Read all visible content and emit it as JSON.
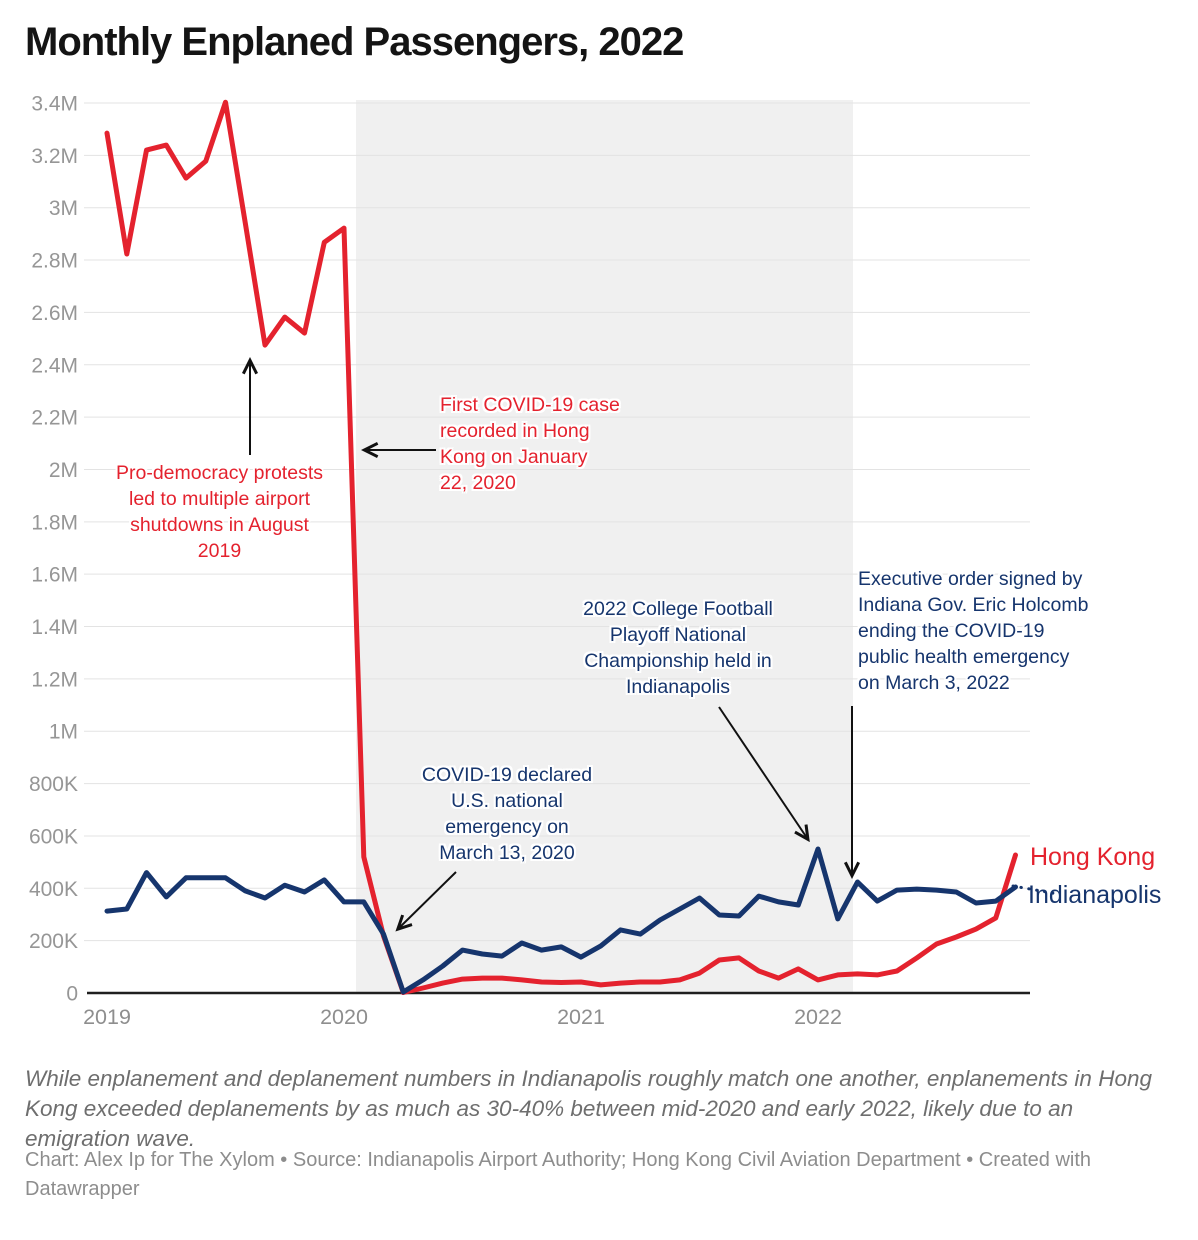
{
  "title": "Monthly Enplaned Passengers, 2022",
  "chart_data": {
    "type": "line",
    "title": "Monthly Enplaned Passengers, 2022",
    "x_unit": "month",
    "frequency": "monthly",
    "x_start": "2019-01",
    "x_end": "2022-11",
    "x_tick_labels": [
      "2019",
      "2020",
      "2021",
      "2022"
    ],
    "y_tick_labels_bottom_to_top": [
      "0",
      "200K",
      "400K",
      "600K",
      "800K",
      "1M",
      "1.2M",
      "1.4M",
      "1.6M",
      "1.8M",
      "2M",
      "2.2M",
      "2.4M",
      "2.6M",
      "2.8M",
      "3M",
      "3.2M",
      "3.4M"
    ],
    "ylim": [
      0,
      3400000
    ],
    "y_unit": "passengers",
    "values_unit": "thousands of passengers",
    "grid": true,
    "series": [
      {
        "name": "Hong Kong",
        "color": "#e4222e",
        "values_thousands": [
          3285,
          2823,
          3220,
          3239,
          3113,
          3178,
          3403,
          2941,
          2475,
          2582,
          2521,
          2868,
          2922,
          520,
          218,
          2,
          19,
          38,
          53,
          57,
          57,
          50,
          42,
          40,
          42,
          31,
          38,
          42,
          42,
          50,
          76,
          126,
          134,
          84,
          57,
          92,
          50,
          69,
          73,
          69,
          84,
          134,
          187,
          214,
          244,
          287,
          527
        ]
      },
      {
        "name": "Indianapolis",
        "color": "#16356d",
        "values_thousands": [
          313,
          321,
          460,
          367,
          440,
          440,
          440,
          390,
          363,
          412,
          386,
          432,
          348,
          348,
          225,
          4,
          50,
          103,
          164,
          149,
          141,
          191,
          164,
          176,
          137,
          180,
          241,
          225,
          279,
          321,
          363,
          298,
          294,
          370,
          348,
          336,
          550,
          283,
          424,
          351,
          393,
          397,
          393,
          386,
          344,
          351,
          405
        ]
      }
    ],
    "shaded_region": {
      "from": "2020-01",
      "to": "2022-03",
      "color": "#f0f0f0"
    },
    "legend_position": "right-of-line-ends"
  },
  "legend": {
    "hong_kong": "Hong Kong",
    "indianapolis": "Indianapolis"
  },
  "annotations": {
    "protests": {
      "text": "Pro-democracy protests\nled to multiple airport\nshutdowns in August\n2019",
      "color": "#e4222e"
    },
    "first_case": {
      "text": "First COVID-19 case\nrecorded in Hong\nKong on January\n22, 2020",
      "color": "#e4222e"
    },
    "us_emergency": {
      "text": "COVID-19 declared\nU.S. national\nemergency on\nMarch 13, 2020",
      "color": "#16356d"
    },
    "cfp": {
      "text": "2022 College Football\nPlayoff National\nChampionship held in\nIndianapolis",
      "color": "#16356d"
    },
    "exec_order": {
      "text": "Executive order signed by\nIndiana Gov. Eric Holcomb\nending the COVID-19\npublic health emergency\non March 3, 2022",
      "color": "#16356d"
    }
  },
  "footer": {
    "description": "While enplanement and deplanement numbers in Indianapolis roughly match one another, enplanements in Hong Kong exceeded deplanements by as much as 30-40% between mid-2020 and early 2022, likely due to an emigration wave.",
    "credit": "Chart: Alex Ip for The Xylom • Source: Indianapolis Airport Authority; Hong Kong Civil Aviation Department • Created with Datawrapper"
  },
  "colors": {
    "hong_kong": "#e4222e",
    "indianapolis": "#16356d",
    "covid_band": "#f0f0f0",
    "gridline": "#e3e3e3",
    "axis_text": "#969696",
    "baseline": "#1f1f1f"
  }
}
